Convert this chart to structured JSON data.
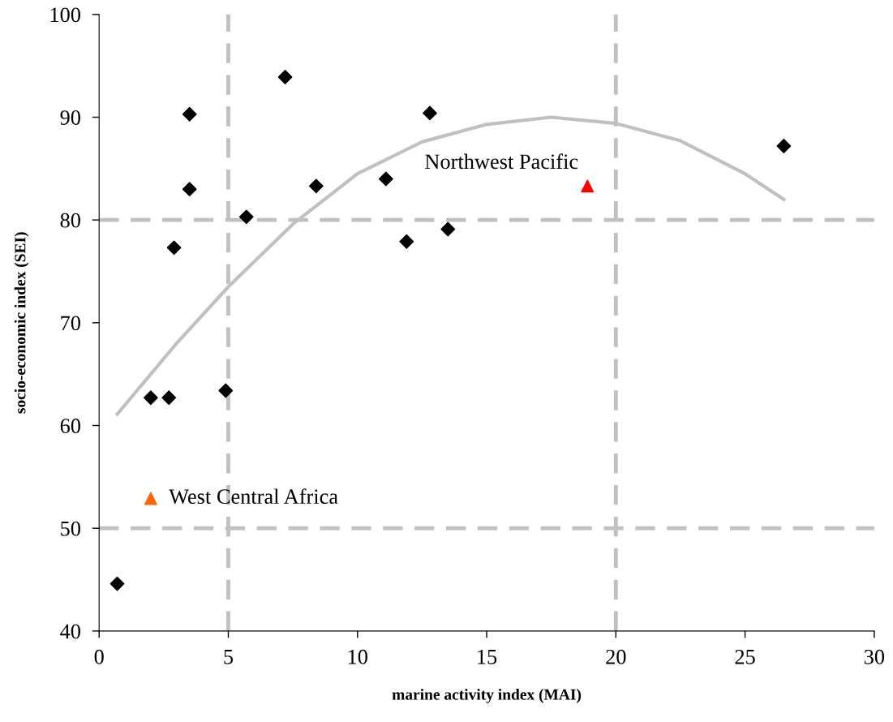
{
  "chart_data": {
    "type": "scatter",
    "xlabel": "marine activity index (MAI)",
    "ylabel": "socio-economic index (SEI)",
    "xlim": [
      0,
      30
    ],
    "ylim": [
      40,
      100
    ],
    "xticks": [
      0,
      5,
      10,
      15,
      20,
      25,
      30
    ],
    "yticks": [
      40,
      50,
      60,
      70,
      80,
      90,
      100
    ],
    "grid": false,
    "legend": false,
    "series": [
      {
        "color": "#000000",
        "marker": "diamond",
        "x": [
          0.7,
          2.0,
          2.7,
          2.9,
          3.5,
          3.5,
          4.9,
          5.7,
          7.2,
          8.4,
          11.1,
          11.9,
          12.8,
          13.5,
          26.5
        ],
        "values": [
          44.6,
          62.7,
          62.7,
          77.3,
          83.0,
          90.3,
          63.4,
          80.3,
          93.9,
          83.3,
          84.0,
          77.9,
          90.4,
          79.1,
          87.2
        ]
      },
      {
        "color": "#ff0000",
        "marker": "triangle",
        "x": [
          18.9
        ],
        "values": [
          83.3
        ]
      },
      {
        "color": "#ff6600",
        "marker": "triangle",
        "x": [
          2.0
        ],
        "values": [
          52.9
        ]
      },
      {
        "type": "line",
        "color": "#c0c0c0",
        "marker": "none",
        "line_style": "solid",
        "x": [
          0.7,
          3,
          5,
          7.5,
          10,
          12.5,
          15,
          17.5,
          20,
          22.5,
          25,
          26.5
        ],
        "values": [
          61.1,
          68.0,
          73.5,
          79.6,
          84.5,
          87.6,
          89.3,
          90.0,
          89.4,
          87.7,
          84.5,
          82.0
        ]
      }
    ],
    "ref_lines": [
      {
        "axis": "x",
        "value": 5,
        "color": "#c0c0c0",
        "line_style": "dashed"
      },
      {
        "axis": "x",
        "value": 20,
        "color": "#c0c0c0",
        "line_style": "dashed"
      },
      {
        "axis": "y",
        "value": 50,
        "color": "#c0c0c0",
        "line_style": "dashed"
      },
      {
        "axis": "y",
        "value": 80,
        "color": "#c0c0c0",
        "line_style": "dashed"
      }
    ],
    "annotations": [
      {
        "text": "Northwest Pacific",
        "x": 18.9,
        "y": 83.3
      },
      {
        "text": "West Central Africa",
        "x": 2.0,
        "y": 52.9
      }
    ]
  }
}
